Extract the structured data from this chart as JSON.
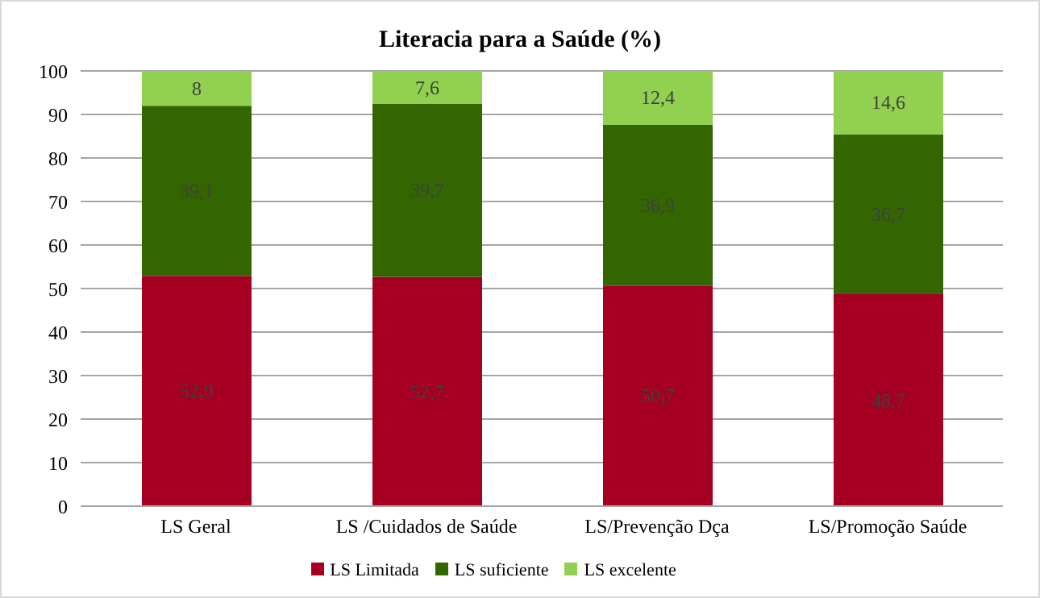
{
  "chart_data": {
    "type": "bar",
    "title": "Literacia para a Saúde (%)",
    "categories": [
      "LS Geral",
      "LS /Cuidados de Saúde",
      "LS/Prevenção Dça",
      "LS/Promoção Saúde"
    ],
    "stacked": true,
    "series": [
      {
        "name": "LS Limitada",
        "color": "#a50021",
        "values": [
          52.9,
          52.7,
          50.7,
          48.7
        ],
        "value_labels": [
          "52,9",
          "52,7",
          "50,7",
          "48,7"
        ]
      },
      {
        "name": "LS suficiente",
        "color": "#336600",
        "values": [
          39.1,
          39.7,
          36.9,
          36.7
        ],
        "value_labels": [
          "39,1",
          "39,7",
          "36,9",
          "36,7"
        ]
      },
      {
        "name": "LS excelente",
        "color": "#92d050",
        "values": [
          8,
          7.6,
          12.4,
          14.6
        ],
        "value_labels": [
          "8",
          "7,6",
          "12,4",
          "14,6"
        ]
      }
    ],
    "ylim": [
      0,
      100
    ],
    "yticks": [
      0,
      10,
      20,
      30,
      40,
      50,
      60,
      70,
      80,
      90,
      100
    ],
    "grid": "y",
    "legend": "bottom"
  }
}
